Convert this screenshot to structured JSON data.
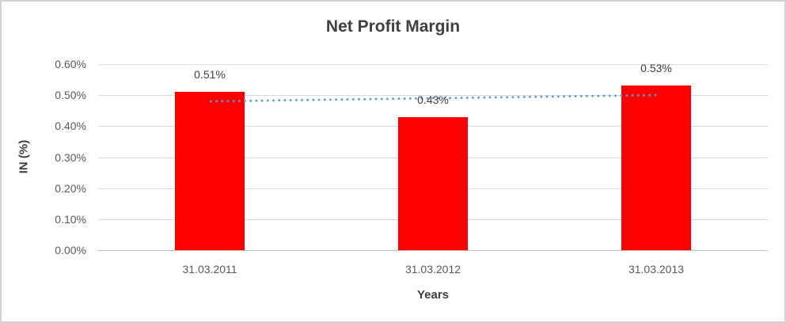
{
  "chart": {
    "title": "Net Profit Margin",
    "x_axis_title": "Years",
    "y_axis_title": "IN (%)"
  },
  "chart_data": {
    "type": "bar",
    "title": "Net Profit Margin",
    "xlabel": "Years",
    "ylabel": "IN (%)",
    "categories": [
      "31.03.2011",
      "31.03.2012",
      "31.03.2013"
    ],
    "values": [
      0.51,
      0.43,
      0.53
    ],
    "data_labels": [
      "0.51%",
      "0.43%",
      "0.53%"
    ],
    "ylim": [
      0,
      0.6
    ],
    "ytick_step": 0.1,
    "yticks": [
      0,
      0.1,
      0.2,
      0.3,
      0.4,
      0.5,
      0.6
    ],
    "ytick_labels": [
      "0.00%",
      "0.10%",
      "0.20%",
      "0.30%",
      "0.40%",
      "0.50%",
      "0.60%"
    ],
    "grid": true,
    "legend": false,
    "bar_color": "#FF0000",
    "gridline_color": "#d9d9d9",
    "axis_line_color": "#bfbfbf",
    "trendline": {
      "type": "linear",
      "style": "dotted",
      "color": "#5B9BD5",
      "values": [
        0.48,
        0.49,
        0.5
      ]
    }
  }
}
